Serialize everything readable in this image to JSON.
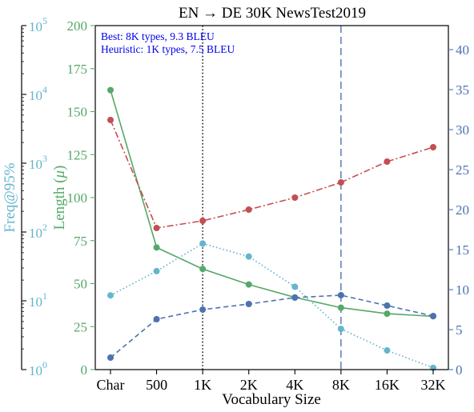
{
  "chart_data": {
    "type": "line",
    "title": "EN → DE 30K NewsTest2019",
    "xlabel": "Vocabulary Size",
    "categories": [
      "Char",
      "500",
      "1K",
      "2K",
      "4K",
      "8K",
      "16K",
      "32K"
    ],
    "annotations": {
      "best": "Best: 8K types, 9.3 BLEU",
      "heuristic": "Heuristic: 1K types, 7.5 BLEU"
    },
    "vlines": [
      {
        "category": "1K",
        "style": "dotted",
        "color": "#000000"
      },
      {
        "category": "8K",
        "style": "dashed",
        "color": "#4c72b0"
      }
    ],
    "axes": {
      "freq": {
        "label": "Freq@95%",
        "scale": "log",
        "ylim": [
          1,
          100000
        ],
        "ticks": [
          {
            "value": 1,
            "base": "10",
            "exp": "0"
          },
          {
            "value": 10,
            "base": "10",
            "exp": "1"
          },
          {
            "value": 100,
            "base": "10",
            "exp": "2"
          },
          {
            "value": 1000,
            "base": "10",
            "exp": "3"
          },
          {
            "value": 10000,
            "base": "10",
            "exp": "4"
          },
          {
            "value": 100000,
            "base": "10",
            "exp": "5"
          }
        ],
        "color": "#64b5cd"
      },
      "length": {
        "label_text": "Length (",
        "label_mu": "μ",
        "label_close": ")",
        "ylim": [
          0,
          200
        ],
        "ticks": [
          "0",
          "25",
          "50",
          "75",
          "100",
          "125",
          "150",
          "175",
          "200"
        ],
        "color": "#55a868"
      },
      "bleu": {
        "ylim": [
          0,
          43
        ],
        "ticks": [
          "0",
          "5",
          "10",
          "15",
          "20",
          "25",
          "30",
          "35",
          "40"
        ],
        "color": "#4c72b0"
      }
    },
    "series": [
      {
        "key": "length",
        "axis": "length",
        "color": "#55a868",
        "style": "solid",
        "values": [
          162.5,
          71,
          58.5,
          49.5,
          42,
          36,
          32.5,
          31
        ]
      },
      {
        "key": "freq",
        "axis": "freq",
        "color": "#64b5cd",
        "style": "dotted",
        "values": [
          12,
          27,
          68,
          44,
          16,
          3.9,
          1.9,
          1.06
        ]
      },
      {
        "key": "bleu_blue",
        "axis": "bleu",
        "color": "#4c72b0",
        "style": "dashed",
        "values": [
          1.5,
          6.3,
          7.5,
          8.2,
          9.0,
          9.3,
          8.0,
          6.7
        ]
      },
      {
        "key": "bleu_red",
        "axis": "bleu",
        "color": "#c44e52",
        "style": "dashdot",
        "values": [
          31.2,
          17.7,
          18.6,
          20.0,
          21.5,
          23.4,
          26.0,
          27.8
        ]
      }
    ]
  }
}
